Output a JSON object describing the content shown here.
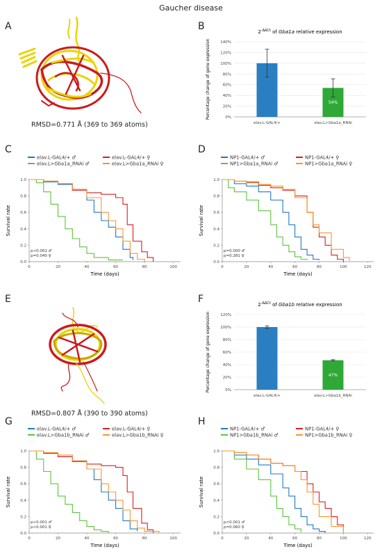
{
  "title": "Gaucher disease",
  "panels": {
    "A": "A",
    "B": "B",
    "C": "C",
    "D": "D",
    "E": "E",
    "F": "F",
    "G": "G",
    "H": "H"
  },
  "structures": {
    "A": {
      "rmsd": "RMSD=0.771 Å (369 to 369 atoms)"
    },
    "E": {
      "rmsd": "RMSD=0.807 Å (390 to 390 atoms)"
    }
  },
  "colors": {
    "blue": "#1f77c8",
    "red": "#dd1b1b",
    "green": "#5cc33b",
    "orange": "#f7952b",
    "bar_blue": "#2a7fc1",
    "bar_green": "#2ea836",
    "struct_red": "#cc1a1a",
    "struct_yellow": "#e8d500"
  },
  "chart_data": [
    {
      "id": "B",
      "type": "bar",
      "title_pre": "2",
      "title_sup": "-ΔΔCt",
      "title_mid": " of ",
      "title_gene": "Gba1a",
      "title_post": " relative expression",
      "ylabel": "Percentage change of gene expression",
      "categories": [
        "elav.L-GAL4/+",
        "elav.L>Gba1a_RNAi"
      ],
      "values": [
        100,
        54
      ],
      "errors": [
        26,
        17
      ],
      "data_labels": [
        "",
        "54%"
      ],
      "yticks": [
        "0%",
        "20%",
        "40%",
        "60%",
        "80%",
        "100%",
        "120%",
        "140%"
      ],
      "ylim": [
        0,
        140
      ]
    },
    {
      "id": "F",
      "type": "bar",
      "title_pre": "2",
      "title_sup": "-ΔΔCt",
      "title_mid": " of ",
      "title_gene": "Gba1b",
      "title_post": " relative expression",
      "ylabel": "Percentage change of gene expression",
      "categories": [
        "elav.L-GAL4/+",
        "elav.L>Gba1b_RNAi"
      ],
      "values": [
        100,
        47
      ],
      "errors": [
        2,
        1
      ],
      "data_labels": [
        "",
        "47%"
      ],
      "yticks": [
        "0%",
        "20%",
        "40%",
        "60%",
        "80%",
        "100%",
        "120%"
      ],
      "ylim": [
        0,
        120
      ]
    },
    {
      "id": "C",
      "type": "line",
      "xlabel": "Time (days)",
      "ylabel": "Survival rate",
      "xlim": [
        0,
        105
      ],
      "ylim": [
        0,
        1
      ],
      "xticks": [
        "0",
        "20",
        "40",
        "60",
        "80",
        "100"
      ],
      "yticks": [
        "0.0",
        "0.2",
        "0.4",
        "0.6",
        "0.8",
        "1.0"
      ],
      "pvals": [
        "p<0.001 ♂",
        "p=0.040 ♀"
      ],
      "series": [
        {
          "name": "elav.L-GAL4/+ ♂",
          "color": "#1f77c8",
          "points": [
            [
              0,
              1
            ],
            [
              10,
              0.97
            ],
            [
              20,
              0.94
            ],
            [
              30,
              0.88
            ],
            [
              40,
              0.75
            ],
            [
              45,
              0.6
            ],
            [
              50,
              0.5
            ],
            [
              55,
              0.42
            ],
            [
              60,
              0.3
            ],
            [
              65,
              0.15
            ],
            [
              70,
              0.05
            ],
            [
              72,
              0.02
            ]
          ]
        },
        {
          "name": "elav.L-GAL4/+ ♀",
          "color": "#dd1b1b",
          "points": [
            [
              0,
              1
            ],
            [
              10,
              0.98
            ],
            [
              20,
              0.95
            ],
            [
              30,
              0.87
            ],
            [
              40,
              0.84
            ],
            [
              50,
              0.82
            ],
            [
              60,
              0.78
            ],
            [
              65,
              0.7
            ],
            [
              68,
              0.45
            ],
            [
              72,
              0.25
            ],
            [
              78,
              0.12
            ],
            [
              82,
              0.05
            ],
            [
              86,
              0
            ]
          ]
        },
        {
          "name": "elav.L>Gba1a_RNAi ♂",
          "color": "#5cc33b",
          "points": [
            [
              0,
              1
            ],
            [
              5,
              0.96
            ],
            [
              10,
              0.85
            ],
            [
              15,
              0.7
            ],
            [
              20,
              0.55
            ],
            [
              25,
              0.4
            ],
            [
              30,
              0.28
            ],
            [
              35,
              0.18
            ],
            [
              40,
              0.1
            ],
            [
              45,
              0.05
            ],
            [
              55,
              0.02
            ],
            [
              65,
              0.02
            ]
          ]
        },
        {
          "name": "elav.L>Gba1a_RNAi ♀",
          "color": "#f7952b",
          "points": [
            [
              0,
              1
            ],
            [
              10,
              0.98
            ],
            [
              20,
              0.95
            ],
            [
              30,
              0.88
            ],
            [
              40,
              0.78
            ],
            [
              50,
              0.6
            ],
            [
              55,
              0.5
            ],
            [
              60,
              0.4
            ],
            [
              65,
              0.25
            ],
            [
              70,
              0.1
            ],
            [
              75,
              0.03
            ],
            [
              80,
              0
            ]
          ]
        }
      ]
    },
    {
      "id": "D",
      "type": "line",
      "xlabel": "Time (days)",
      "ylabel": "Survival rate",
      "xlim": [
        0,
        125
      ],
      "ylim": [
        0,
        1
      ],
      "xticks": [
        "0",
        "20",
        "40",
        "60",
        "80",
        "100",
        "120"
      ],
      "yticks": [
        "0.0",
        "0.2",
        "0.4",
        "0.6",
        "0.8",
        "1.0"
      ],
      "pvals": [
        "p=0.000 ♂",
        "p=0.281 ♀"
      ],
      "series": [
        {
          "name": "NP1-GAL4/+ ♂",
          "color": "#1f77c8",
          "points": [
            [
              0,
              1
            ],
            [
              10,
              0.95
            ],
            [
              20,
              0.92
            ],
            [
              30,
              0.85
            ],
            [
              40,
              0.75
            ],
            [
              50,
              0.6
            ],
            [
              55,
              0.45
            ],
            [
              60,
              0.3
            ],
            [
              65,
              0.15
            ],
            [
              70,
              0.08
            ],
            [
              75,
              0.03
            ],
            [
              80,
              0.02
            ]
          ]
        },
        {
          "name": "NP1-GAL4/+ ♀",
          "color": "#dd1b1b",
          "points": [
            [
              0,
              1
            ],
            [
              10,
              0.98
            ],
            [
              20,
              0.97
            ],
            [
              30,
              0.93
            ],
            [
              40,
              0.9
            ],
            [
              50,
              0.87
            ],
            [
              60,
              0.8
            ],
            [
              70,
              0.6
            ],
            [
              75,
              0.42
            ],
            [
              80,
              0.3
            ],
            [
              85,
              0.2
            ],
            [
              90,
              0.08
            ],
            [
              95,
              0.03
            ],
            [
              100,
              0
            ]
          ]
        },
        {
          "name": "NP1>Gba1a_RNAi ♂",
          "color": "#5cc33b",
          "points": [
            [
              0,
              1
            ],
            [
              5,
              0.9
            ],
            [
              10,
              0.85
            ],
            [
              20,
              0.75
            ],
            [
              30,
              0.62
            ],
            [
              40,
              0.45
            ],
            [
              45,
              0.3
            ],
            [
              50,
              0.2
            ],
            [
              55,
              0.12
            ],
            [
              60,
              0.06
            ],
            [
              65,
              0.03
            ],
            [
              70,
              0.02
            ]
          ]
        },
        {
          "name": "NP1>Gba1a_RNAi ♀",
          "color": "#f7952b",
          "points": [
            [
              0,
              1
            ],
            [
              10,
              0.98
            ],
            [
              20,
              0.96
            ],
            [
              30,
              0.94
            ],
            [
              40,
              0.92
            ],
            [
              50,
              0.88
            ],
            [
              60,
              0.78
            ],
            [
              70,
              0.6
            ],
            [
              75,
              0.45
            ],
            [
              80,
              0.35
            ],
            [
              90,
              0.15
            ],
            [
              100,
              0.05
            ],
            [
              105,
              0.01
            ]
          ]
        }
      ]
    },
    {
      "id": "G",
      "type": "line",
      "xlabel": "Time (days)",
      "ylabel": "Survival rate",
      "xlim": [
        0,
        105
      ],
      "ylim": [
        0,
        1
      ],
      "xticks": [
        "0",
        "20",
        "40",
        "60",
        "80",
        "100"
      ],
      "yticks": [
        "0.0",
        "0.2",
        "0.4",
        "0.6",
        "0.8",
        "1.0"
      ],
      "pvals": [
        "p<0.001 ♂",
        "p<0.001 ♀"
      ],
      "series": [
        {
          "name": "elav.L-GAL4/+ ♂",
          "color": "#1f77c8",
          "points": [
            [
              0,
              1
            ],
            [
              10,
              0.97
            ],
            [
              20,
              0.93
            ],
            [
              30,
              0.88
            ],
            [
              40,
              0.78
            ],
            [
              45,
              0.65
            ],
            [
              50,
              0.5
            ],
            [
              55,
              0.4
            ],
            [
              60,
              0.3
            ],
            [
              65,
              0.15
            ],
            [
              70,
              0.05
            ],
            [
              75,
              0.02
            ]
          ]
        },
        {
          "name": "elav.L-GAL4/+ ♀",
          "color": "#dd1b1b",
          "points": [
            [
              0,
              1
            ],
            [
              10,
              0.97
            ],
            [
              20,
              0.93
            ],
            [
              30,
              0.87
            ],
            [
              40,
              0.84
            ],
            [
              50,
              0.82
            ],
            [
              60,
              0.8
            ],
            [
              65,
              0.7
            ],
            [
              68,
              0.5
            ],
            [
              72,
              0.3
            ],
            [
              78,
              0.12
            ],
            [
              82,
              0.04
            ],
            [
              86,
              0
            ]
          ]
        },
        {
          "name": "elav.L>Gba1b_RNAi ♂",
          "color": "#5cc33b",
          "points": [
            [
              0,
              1
            ],
            [
              5,
              0.9
            ],
            [
              10,
              0.75
            ],
            [
              15,
              0.6
            ],
            [
              20,
              0.45
            ],
            [
              25,
              0.35
            ],
            [
              30,
              0.25
            ],
            [
              35,
              0.15
            ],
            [
              40,
              0.08
            ],
            [
              45,
              0.04
            ],
            [
              50,
              0.02
            ],
            [
              55,
              0
            ]
          ]
        },
        {
          "name": "elav.L>Gba1b_RNAi ♀",
          "color": "#f7952b",
          "points": [
            [
              0,
              1
            ],
            [
              10,
              0.98
            ],
            [
              20,
              0.95
            ],
            [
              30,
              0.88
            ],
            [
              40,
              0.78
            ],
            [
              50,
              0.6
            ],
            [
              55,
              0.5
            ],
            [
              60,
              0.4
            ],
            [
              65,
              0.28
            ],
            [
              70,
              0.15
            ],
            [
              75,
              0.06
            ],
            [
              80,
              0.02
            ],
            [
              90,
              0
            ]
          ]
        }
      ]
    },
    {
      "id": "H",
      "type": "line",
      "xlabel": "Time (days)",
      "ylabel": "Survival rate",
      "xlim": [
        0,
        125
      ],
      "ylim": [
        0,
        1
      ],
      "xticks": [
        "0",
        "20",
        "40",
        "60",
        "80",
        "100",
        "120"
      ],
      "yticks": [
        "0.0",
        "0.2",
        "0.4",
        "0.6",
        "0.8",
        "1.0"
      ],
      "pvals": [
        "p<0.001 ♂",
        "p=0.060 ♀"
      ],
      "series": [
        {
          "name": "NP1-GAL4/+ ♂",
          "color": "#1f77c8",
          "points": [
            [
              0,
              1
            ],
            [
              10,
              0.95
            ],
            [
              20,
              0.9
            ],
            [
              30,
              0.83
            ],
            [
              40,
              0.72
            ],
            [
              50,
              0.55
            ],
            [
              55,
              0.45
            ],
            [
              60,
              0.3
            ],
            [
              65,
              0.2
            ],
            [
              70,
              0.1
            ],
            [
              75,
              0.05
            ],
            [
              80,
              0.02
            ],
            [
              85,
              0
            ]
          ]
        },
        {
          "name": "NP1-GAL4/+ ♀",
          "color": "#dd1b1b",
          "points": [
            [
              0,
              1
            ],
            [
              10,
              0.98
            ],
            [
              20,
              0.95
            ],
            [
              30,
              0.9
            ],
            [
              40,
              0.85
            ],
            [
              50,
              0.82
            ],
            [
              60,
              0.75
            ],
            [
              70,
              0.6
            ],
            [
              75,
              0.5
            ],
            [
              80,
              0.38
            ],
            [
              85,
              0.3
            ],
            [
              90,
              0.2
            ],
            [
              95,
              0.1
            ],
            [
              100,
              0.02
            ]
          ]
        },
        {
          "name": "NP1>Gba1b_RNAi ♂",
          "color": "#5cc33b",
          "points": [
            [
              0,
              1
            ],
            [
              10,
              0.9
            ],
            [
              20,
              0.78
            ],
            [
              30,
              0.65
            ],
            [
              40,
              0.45
            ],
            [
              45,
              0.3
            ],
            [
              50,
              0.2
            ],
            [
              55,
              0.1
            ],
            [
              60,
              0.05
            ],
            [
              65,
              0.01
            ]
          ]
        },
        {
          "name": "NP1>Gba1b_RNAi ♀",
          "color": "#f7952b",
          "points": [
            [
              0,
              1
            ],
            [
              10,
              0.98
            ],
            [
              20,
              0.95
            ],
            [
              30,
              0.9
            ],
            [
              40,
              0.85
            ],
            [
              50,
              0.82
            ],
            [
              60,
              0.75
            ],
            [
              65,
              0.65
            ],
            [
              70,
              0.5
            ],
            [
              75,
              0.35
            ],
            [
              80,
              0.2
            ],
            [
              90,
              0.08
            ],
            [
              100,
              0
            ]
          ]
        }
      ]
    }
  ]
}
